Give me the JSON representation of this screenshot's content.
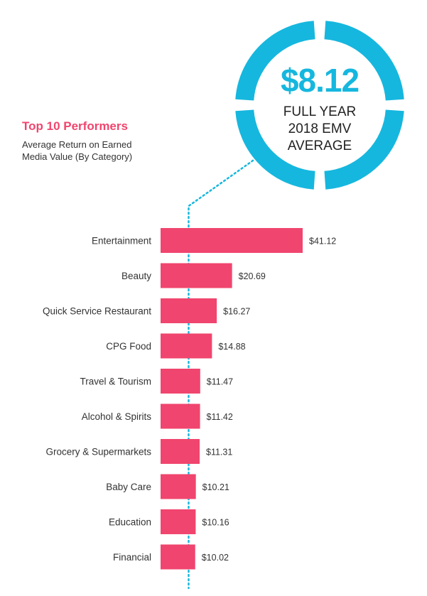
{
  "header": {
    "title": "Top 10 Performers",
    "subtitle_line1": "Average Return on Earned",
    "subtitle_line2": "Media Value (By Category)"
  },
  "badge": {
    "value": "$8.12",
    "line1": "FULL YEAR",
    "line2": "2018 EMV",
    "line3": "AVERAGE"
  },
  "colors": {
    "bar": "#f0456e",
    "accent": "#16b7de",
    "text": "#333333"
  },
  "chart_data": {
    "type": "bar",
    "orientation": "horizontal",
    "categories": [
      "Entertainment",
      "Beauty",
      "Quick Service Restaurant",
      "CPG Food",
      "Travel & Tourism",
      "Alcohol & Spirits",
      "Grocery & Supermarkets",
      "Baby Care",
      "Education",
      "Financial"
    ],
    "values": [
      41.12,
      20.69,
      16.27,
      14.88,
      11.47,
      11.42,
      11.31,
      10.21,
      10.16,
      10.02
    ],
    "value_labels": [
      "$41.12",
      "$20.69",
      "$16.27",
      "$14.88",
      "$11.47",
      "$11.42",
      "$11.31",
      "$10.21",
      "$10.16",
      "$10.02"
    ],
    "reference_value": 8.12,
    "title": "Top 10 Performers",
    "xlabel": "",
    "ylabel": ""
  }
}
